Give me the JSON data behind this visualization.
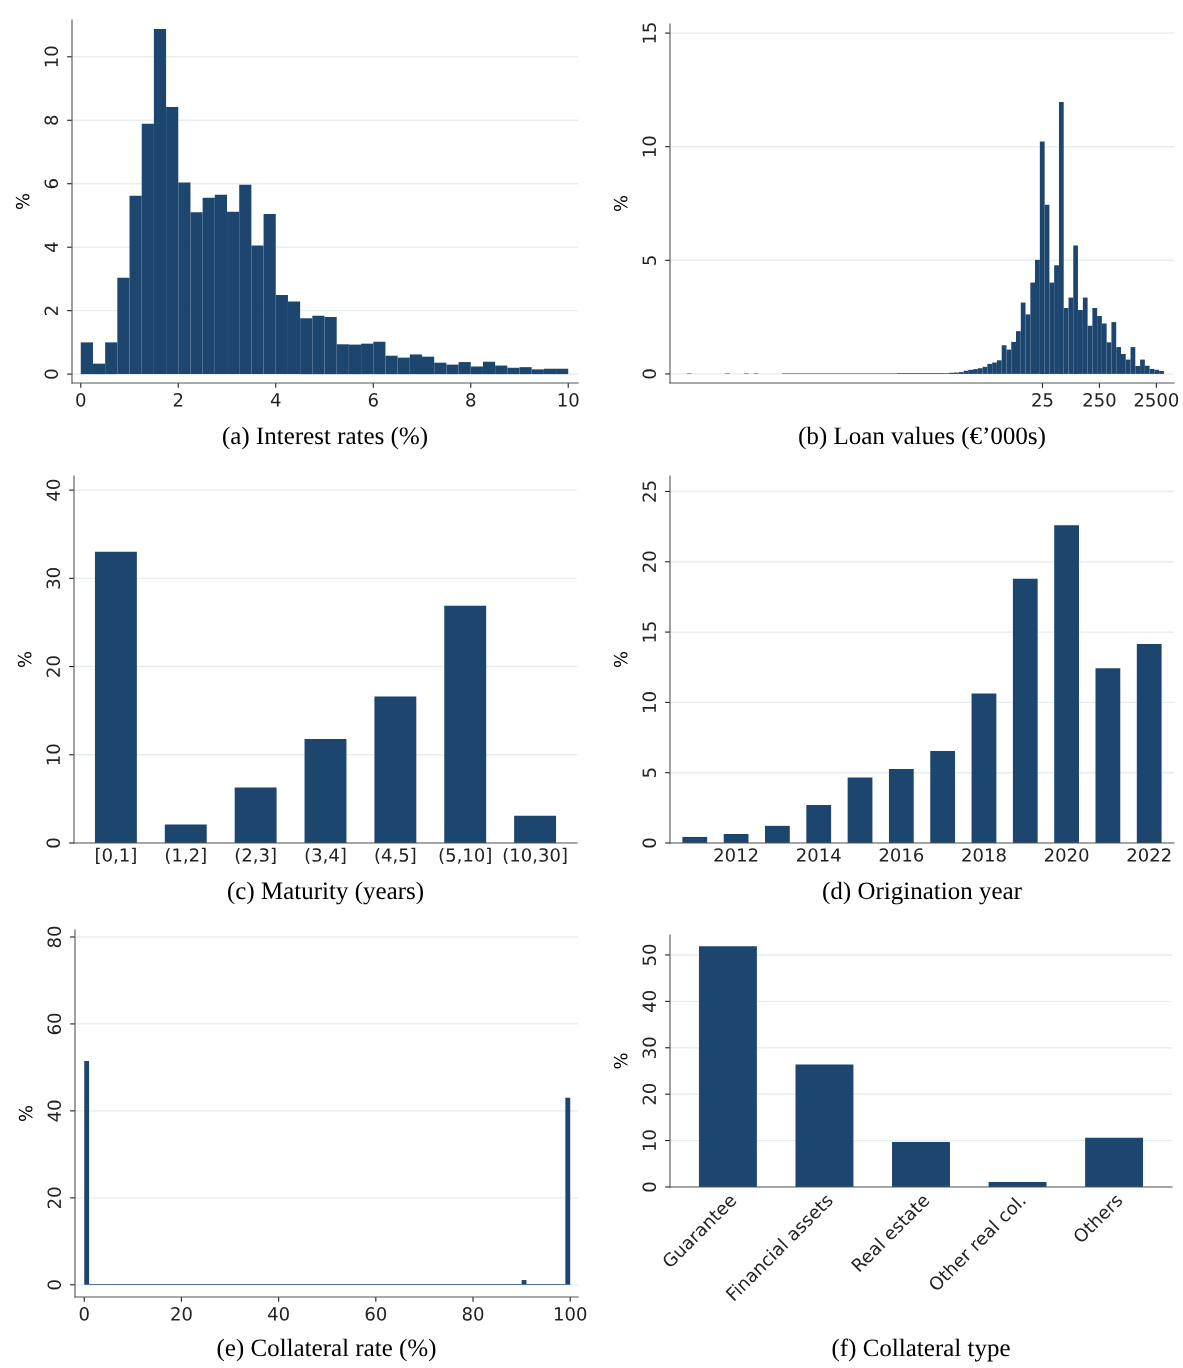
{
  "chart_data": [
    {
      "type": "histogram",
      "title": "(a) Interest rates (%)",
      "ylabel": "%",
      "color": "#1d466f",
      "grid": "y",
      "bins": [
        0,
        0.25,
        0.5,
        0.75,
        1,
        1.25,
        1.5,
        1.75,
        2,
        2.25,
        2.5,
        2.75,
        3,
        3.25,
        3.5,
        3.75,
        4,
        4.25,
        4.5,
        4.75,
        5,
        5.25,
        5.5,
        5.75,
        6,
        6.25,
        6.5,
        6.75,
        7,
        7.25,
        7.5,
        7.75,
        8,
        8.25,
        8.5,
        8.75,
        9,
        9.25,
        9.5,
        9.75,
        10
      ],
      "values": [
        1.0,
        0.33,
        1.0,
        3.04,
        5.62,
        7.89,
        10.88,
        8.42,
        6.04,
        5.1,
        5.56,
        5.65,
        5.12,
        5.97,
        4.05,
        5.05,
        2.49,
        2.29,
        1.76,
        1.84,
        1.8,
        0.94,
        0.93,
        0.96,
        1.02,
        0.58,
        0.52,
        0.62,
        0.55,
        0.36,
        0.3,
        0.38,
        0.24,
        0.39,
        0.27,
        0.2,
        0.22,
        0.15,
        0.17,
        0.17
      ],
      "xlim": [
        -0.18,
        10.2
      ],
      "ylim": [
        -0.28,
        11.16
      ],
      "xticks": [
        0,
        2,
        4,
        6,
        8,
        10
      ],
      "yticks": [
        0,
        2,
        4,
        6,
        8,
        10
      ]
    },
    {
      "type": "histogram",
      "title": "(b) Loan values (€’000s)",
      "ylabel": "%",
      "color": "#1d466f",
      "grid": "y",
      "log": "x",
      "bins": [
        1.42e-05,
        1.72e-05,
        6.62e-05,
        8.04e-05,
        0.000143,
        0.000174,
        0.000211,
        0.000256,
        0.000671,
        0.0689,
        0.474,
        0.575,
        0.698,
        0.846,
        1.03,
        1.24,
        1.51,
        1.83,
        2.22,
        2.69,
        3.27,
        3.96,
        4.81,
        5.83,
        7.07,
        8.57,
        10.4,
        12.6,
        15.3,
        18.5,
        22.5,
        27.3,
        33.1,
        40.1,
        48.7,
        59.0,
        71.6,
        86.8,
        105,
        128,
        155,
        188,
        228,
        276,
        335,
        406,
        493,
        598,
        725,
        879,
        1067,
        1294,
        1570,
        1901,
        2307,
        2799,
        3396
      ],
      "values": [
        0.02,
        null,
        0.02,
        null,
        0.02,
        null,
        0.02,
        null,
        0.02,
        0.03,
        0.03,
        0.05,
        0.06,
        0.08,
        0.14,
        0.18,
        0.21,
        0.25,
        0.31,
        0.44,
        0.5,
        0.6,
        1.26,
        1.07,
        1.41,
        1.88,
        3.14,
        2.62,
        4.02,
        5.02,
        10.23,
        7.45,
        4.02,
        4.78,
        11.97,
        2.9,
        3.36,
        5.65,
        2.81,
        3.36,
        2.12,
        2.9,
        2.55,
        2.22,
        1.39,
        2.28,
        1.18,
        0.88,
        0.63,
        1.18,
        0.35,
        0.63,
        0.36,
        0.22,
        0.18,
        0.13
      ],
      "xlim": [
        7.2e-06,
        5100
      ],
      "ylim": [
        -0.4,
        15.4
      ],
      "xticks": [
        25,
        250,
        2500
      ],
      "yticks": [
        0,
        5,
        10,
        15
      ]
    },
    {
      "type": "bar",
      "title": "(c) Maturity (years)",
      "ylabel": "%",
      "color": "#1d466f",
      "grid": "y",
      "categories": [
        "[0,1]",
        "(1,2]",
        "(2,3]",
        "(3,4]",
        "(4,5]",
        "(5,10]",
        "(10,30]"
      ],
      "values": [
        33.0,
        2.1,
        6.3,
        11.8,
        16.6,
        26.9,
        3.1
      ],
      "ylim": [
        0,
        41.6
      ],
      "yticks": [
        0,
        10,
        20,
        30,
        40
      ]
    },
    {
      "type": "bar",
      "title": "(d) Origination year",
      "ylabel": "%",
      "color": "#1d466f",
      "grid": "y",
      "categories": [
        null,
        "2012",
        null,
        "2014",
        null,
        "2016",
        null,
        "2018",
        null,
        "2020",
        null,
        "2022"
      ],
      "values": [
        0.43,
        0.64,
        1.22,
        2.71,
        4.65,
        5.27,
        6.54,
        10.64,
        18.8,
        22.6,
        12.42,
        14.15
      ],
      "ylim": [
        0,
        26.1
      ],
      "yticks": [
        0,
        5,
        10,
        15,
        20,
        25
      ]
    },
    {
      "type": "histogram",
      "title": "(e) Collateral rate (%)",
      "ylabel": "%",
      "color": "#1d466f",
      "grid": "y",
      "bins": [
        0,
        1,
        90,
        91,
        99,
        100
      ],
      "values": [
        51.5,
        0.2,
        1.1,
        0.2,
        43.0
      ],
      "xlim": [
        -1.9,
        101.6
      ],
      "ylim": [
        -2.8,
        81.6
      ],
      "xticks": [
        0,
        20,
        40,
        60,
        80,
        100
      ],
      "yticks": [
        0,
        20,
        40,
        60,
        80
      ]
    },
    {
      "type": "bar",
      "title": "(f) Collateral type",
      "ylabel": "%",
      "color": "#1d466f",
      "grid": "y",
      "categories": [
        "Guarantee",
        "Financial assets",
        "Real estate",
        "Other real col.",
        "Others"
      ],
      "values": [
        51.9,
        26.4,
        9.7,
        1.1,
        10.6
      ],
      "ylim": [
        0,
        54.3
      ],
      "yticks": [
        0,
        10,
        20,
        30,
        40,
        50
      ]
    }
  ]
}
